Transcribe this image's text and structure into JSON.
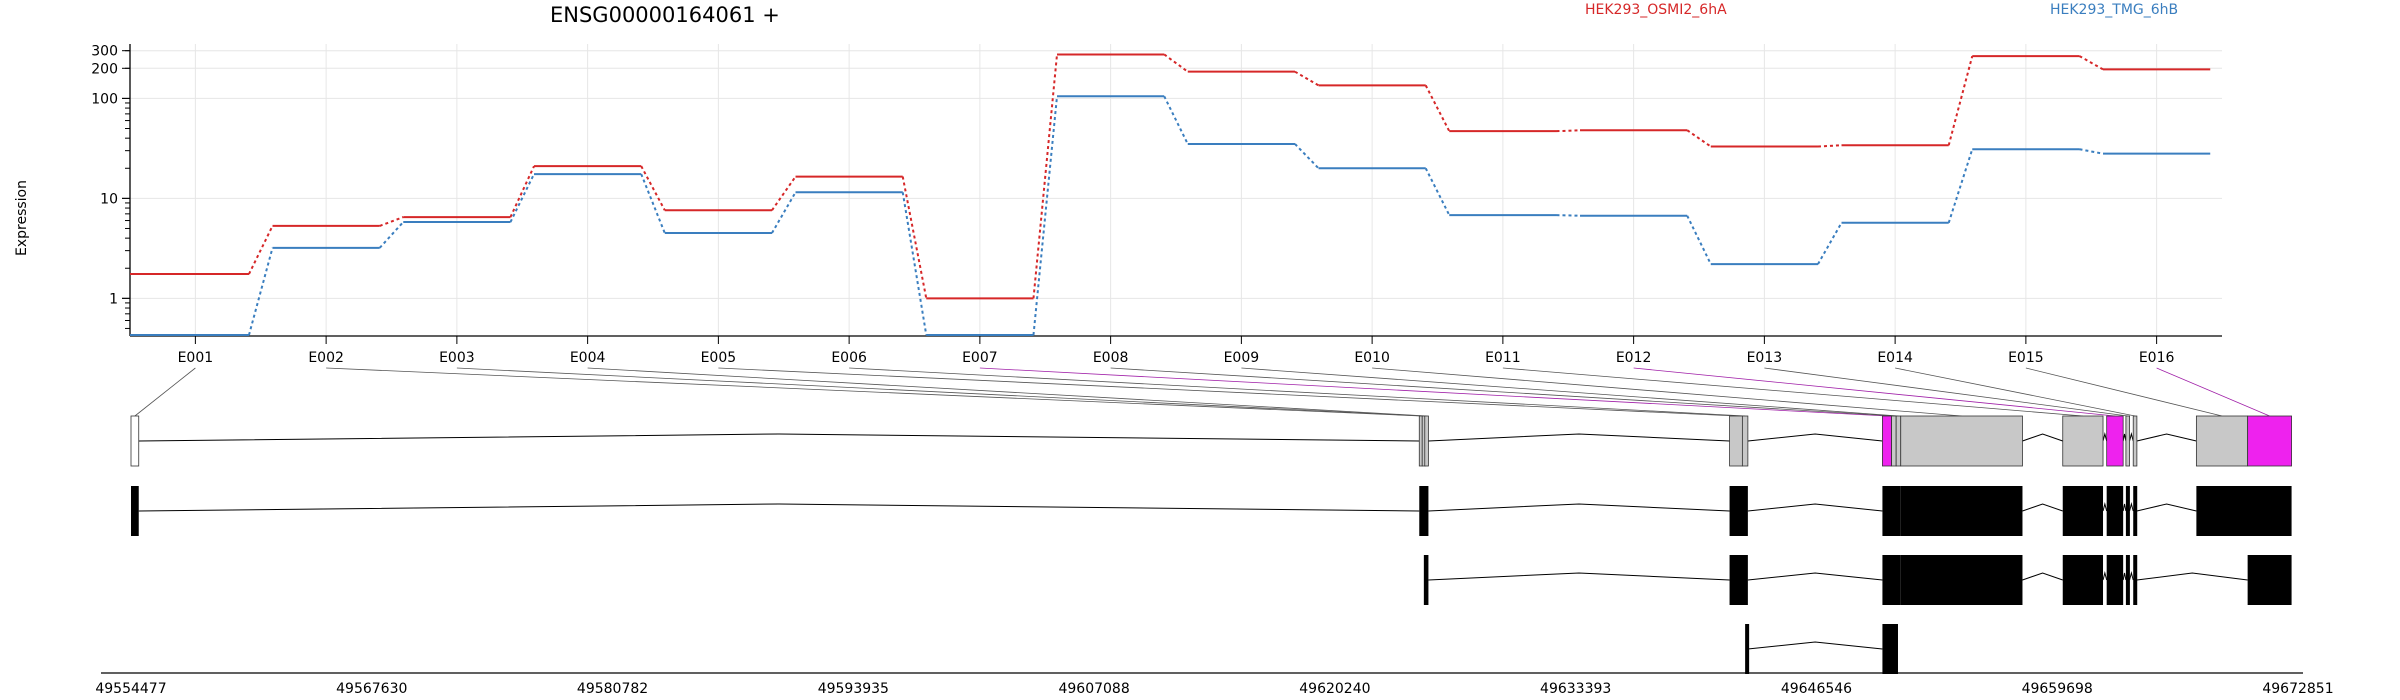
{
  "chart_data": {
    "type": "line",
    "title": "ENSG00000164061 +",
    "ylabel": "Expression",
    "y_scale": "log",
    "ylim": [
      0.42,
      350
    ],
    "y_ticks": [
      {
        "value": 1,
        "label": "1"
      },
      {
        "value": 10,
        "label": "10"
      },
      {
        "value": 100,
        "label": "100"
      },
      {
        "value": 200,
        "label": "200"
      },
      {
        "value": 300,
        "label": "300"
      }
    ],
    "categories": [
      "E001",
      "E002",
      "E003",
      "E004",
      "E005",
      "E006",
      "E007",
      "E008",
      "E009",
      "E010",
      "E011",
      "E012",
      "E013",
      "E014",
      "E015",
      "E016"
    ],
    "grid": true,
    "legend_position": "top",
    "series": [
      {
        "name": "HEK293_OSMI2_6hA",
        "color": "#d62728",
        "values": [
          1.75,
          5.3,
          6.5,
          21,
          7.6,
          16.5,
          1.0,
          275,
          185,
          135,
          47,
          48,
          33,
          34,
          265,
          195
        ]
      },
      {
        "name": "HEK293_TMG_6hB",
        "color": "#3a7ebf",
        "values": [
          0.43,
          3.2,
          5.8,
          17.5,
          4.5,
          11.5,
          0.43,
          105,
          35,
          20,
          6.8,
          6.7,
          2.2,
          5.7,
          31,
          28
        ]
      }
    ],
    "genomic_axis": {
      "range": [
        49554477,
        49672851
      ],
      "ticks": [
        "49554477",
        "49567630",
        "49580782",
        "49593935",
        "49607088",
        "49620240",
        "49633393",
        "49646546",
        "49659698",
        "49672851"
      ]
    },
    "exon_map": [
      {
        "label": "E001",
        "start": 49554477,
        "end": 49554900,
        "highlight": false
      },
      {
        "label": "E002",
        "start": 49624850,
        "end": 49625010,
        "highlight": false
      },
      {
        "label": "E003",
        "start": 49625010,
        "end": 49625150,
        "highlight": false
      },
      {
        "label": "E004",
        "start": 49625150,
        "end": 49625350,
        "highlight": false
      },
      {
        "label": "E005",
        "start": 49641800,
        "end": 49642500,
        "highlight": false
      },
      {
        "label": "E006",
        "start": 49642500,
        "end": 49642800,
        "highlight": false
      },
      {
        "label": "E007",
        "start": 49650150,
        "end": 49650650,
        "highlight": true
      },
      {
        "label": "E008",
        "start": 49650650,
        "end": 49650900,
        "highlight": false
      },
      {
        "label": "E009",
        "start": 49650900,
        "end": 49651150,
        "highlight": false
      },
      {
        "label": "E010",
        "start": 49651150,
        "end": 49657800,
        "highlight": false
      },
      {
        "label": "E011",
        "start": 49660000,
        "end": 49662200,
        "highlight": false
      },
      {
        "label": "E012",
        "start": 49662400,
        "end": 49663300,
        "highlight": true
      },
      {
        "label": "E013",
        "start": 49663450,
        "end": 49663650,
        "highlight": false
      },
      {
        "label": "E014",
        "start": 49663850,
        "end": 49664050,
        "highlight": false
      },
      {
        "label": "E015",
        "start": 49667300,
        "end": 49670100,
        "highlight": false
      },
      {
        "label": "E016",
        "start": 49670100,
        "end": 49672500,
        "highlight": true
      }
    ],
    "transcripts": [
      {
        "exons": [
          [
            49554477,
            49554900
          ],
          [
            49624850,
            49625350
          ],
          [
            49641800,
            49642800
          ],
          [
            49650150,
            49651150
          ],
          [
            49651150,
            49657800
          ],
          [
            49660000,
            49662200
          ],
          [
            49662400,
            49663300
          ],
          [
            49663450,
            49663650
          ],
          [
            49663850,
            49664050
          ],
          [
            49667300,
            49672500
          ]
        ]
      },
      {
        "exons": [
          [
            49625100,
            49625350
          ],
          [
            49641800,
            49642800
          ],
          [
            49650150,
            49651150
          ],
          [
            49651150,
            49657800
          ],
          [
            49660000,
            49662200
          ],
          [
            49662400,
            49663300
          ],
          [
            49663450,
            49663650
          ],
          [
            49663850,
            49664050
          ],
          [
            49670100,
            49672500
          ]
        ]
      },
      {
        "exons": [
          [
            49642650,
            49642800
          ],
          [
            49650150,
            49651000
          ]
        ]
      }
    ]
  }
}
